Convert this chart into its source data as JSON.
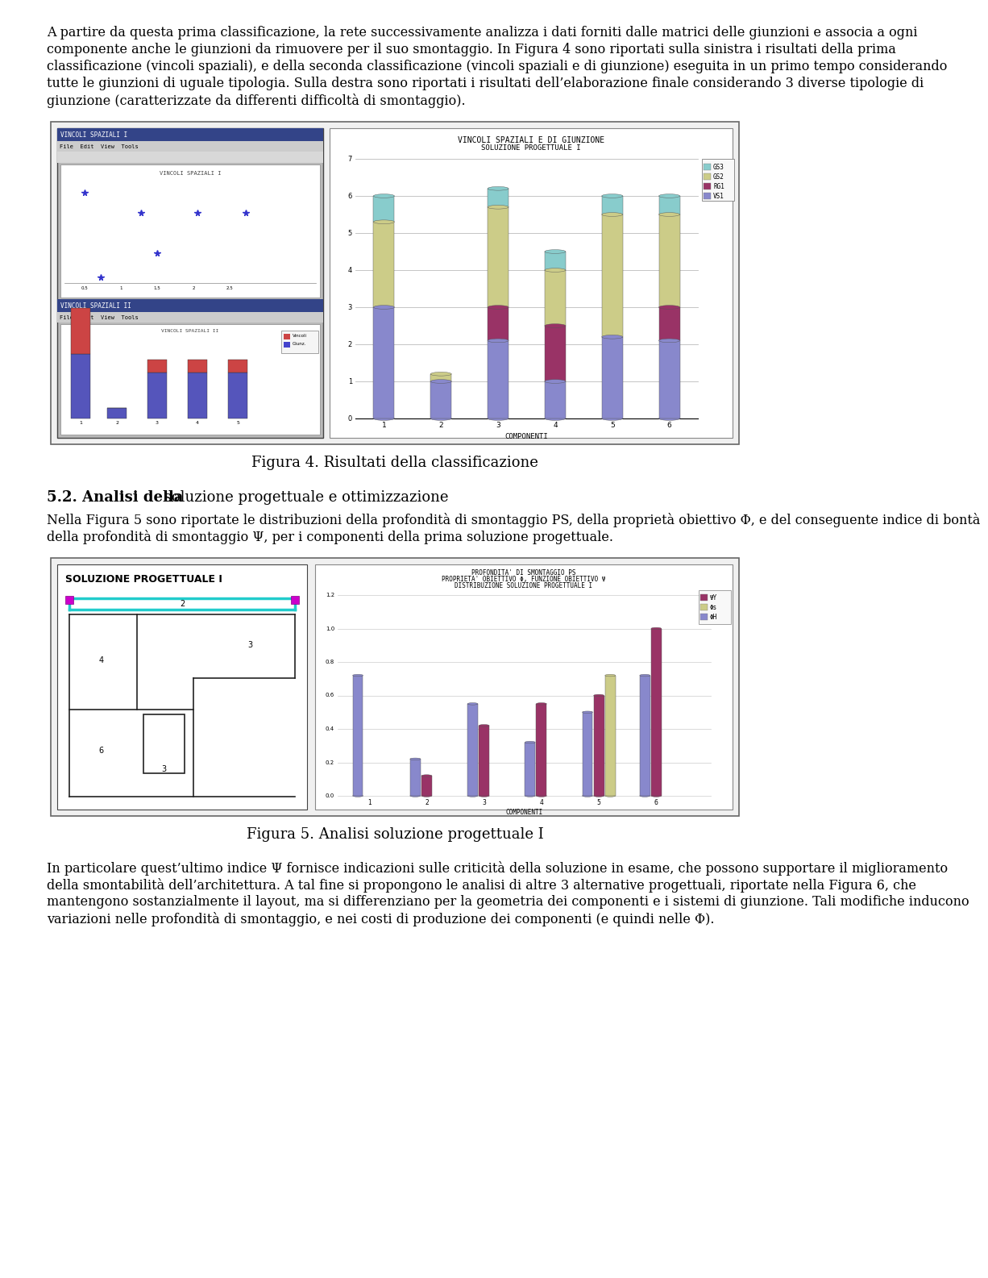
{
  "bg_color": "#ffffff",
  "page_width": 9.6,
  "page_height": 15.65,
  "paragraph1": "A partire da questa prima classificazione, la rete successivamente analizza i dati forniti dalle matrici delle giunzioni e associa a ogni componente anche le giunzioni da rimuovere per il suo smontaggio. In Figura 4 sono riportati sulla sinistra i risultati della prima classificazione (vincoli spaziali), e della seconda classificazione (vincoli spaziali e di giunzione)  eseguita in un primo tempo considerando tutte le giunzioni di uguale tipologia. Sulla destra sono riportati i risultati dell’elaborazione finale considerando 3 diverse tipologie di giunzione (caratterizzate da differenti difficoltà di smontaggio).",
  "figure4_caption": "Figura 4. Risultati della classificazione",
  "section_bold": "5.2. Analisi della",
  "section_normal": " soluzione progettuale e ottimizzazione",
  "paragraph2": "Nella Figura 5 sono riportate le distribuzioni della profondità di smontaggio PS, della proprietà obiettivo Φ, e del conseguente indice di bontà della profondità di smontaggio Ψ, per i componenti della prima soluzione progettuale.",
  "figure5_caption": "Figura 5. Analisi soluzione progettuale I",
  "paragraph3": "In particolare quest’ultimo indice Ψ fornisce indicazioni sulle criticità della soluzione in esame, che possono supportare il miglioramento della smontabilità dell’architettura. A tal fine si propongono le analisi di altre 3 alternative progettuali, riportate nella Figura 6, che mantengono sostanzialmente il layout, ma si differenziano per la geometria dei componenti e i sistemi di giunzione. Tali modifiche inducono variazioni nelle profondità di smontaggio, e nei costi di produzione dei componenti (e quindi nelle Φ).",
  "chart4_title1": "VINCOLI SPAZIALI E DI GIUNZIONE",
  "chart4_title2": "SOLUZIONE PROGETTUALE I",
  "chart4_xlabel": "COMPONENTI",
  "chart4_bar_bottom_color": "#8888cc",
  "chart4_bar_mid_color": "#993366",
  "chart4_bar_top_color": "#cccc88",
  "chart4_bar_top2_color": "#88cccc",
  "chart4_seg1": [
    3.0,
    1.0,
    2.1,
    1.0,
    2.2,
    2.1
  ],
  "chart4_seg2": [
    0.0,
    0.0,
    0.9,
    1.5,
    0.0,
    0.9
  ],
  "chart4_seg3": [
    2.3,
    0.2,
    2.7,
    1.5,
    3.3,
    2.5
  ],
  "chart4_seg4": [
    0.7,
    0.0,
    0.5,
    0.5,
    0.5,
    0.5
  ],
  "chart5_title1": "PROFONDITA' DI SMONTAGGIO PS",
  "chart5_title2": "PROPRIETA' OBIETTIVO Φ, FUNZIONE OBIETTIVO Ψ",
  "chart5_title3": "DISTRIBUZIONE SOLUZIONE PROGETTUALE I",
  "chart5_bar1_color": "#8888cc",
  "chart5_bar2_color": "#993366",
  "chart5_bar3_color": "#cccc88",
  "chart5_series1": [
    0.72,
    0.22,
    0.55,
    0.32,
    0.5,
    0.72
  ],
  "chart5_series2": [
    0.0,
    0.12,
    0.42,
    0.55,
    0.6,
    1.0
  ],
  "chart5_series3": [
    0.0,
    0.0,
    0.0,
    0.0,
    0.72,
    0.0
  ]
}
